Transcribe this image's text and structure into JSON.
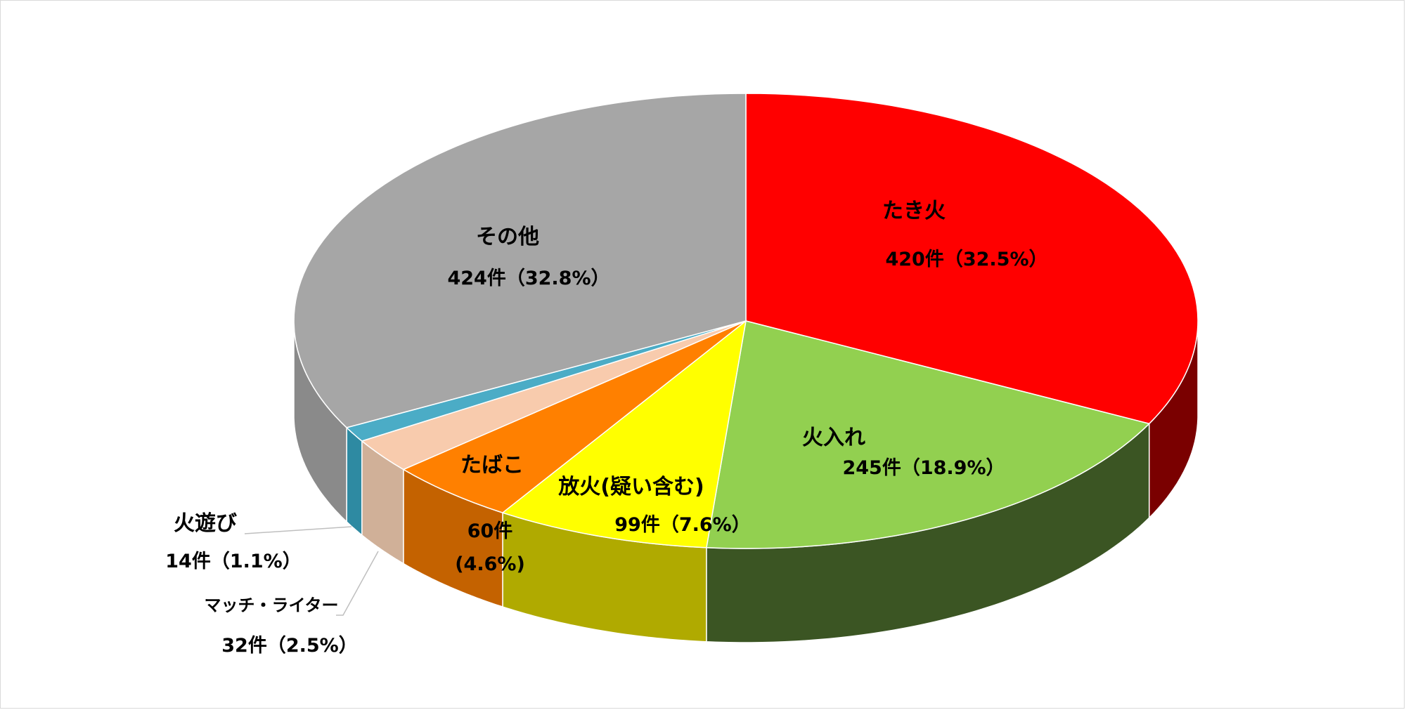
{
  "chart_data": {
    "type": "pie",
    "style": "3d",
    "unit": "件",
    "total": 1294,
    "slices": [
      {
        "name": "たき火",
        "value": 420,
        "percent": 32.5,
        "value_label": "420件（32.5%）",
        "color": "#ff0000",
        "side_color": "#7a0000"
      },
      {
        "name": "火入れ",
        "value": 245,
        "percent": 18.9,
        "value_label": "245件（18.9%）",
        "color": "#92d050",
        "side_color": "#3b5523"
      },
      {
        "name": "放火(疑い含む)",
        "value": 99,
        "percent": 7.6,
        "value_label": "99件（7.6%）",
        "color": "#ffff00",
        "side_color": "#b0aa00"
      },
      {
        "name": "たばこ",
        "value": 60,
        "percent": 4.6,
        "value_label_line1": "60件",
        "value_label_line2": "(4.6%)",
        "color": "#ff8000",
        "side_color": "#c46200"
      },
      {
        "name": "マッチ・ライター",
        "value": 32,
        "percent": 2.5,
        "value_label": "32件（2.5%）",
        "color": "#f8cbad",
        "side_color": "#d0b098"
      },
      {
        "name": "火遊び",
        "value": 14,
        "percent": 1.1,
        "value_label": "14件（1.1%）",
        "color": "#4bacc6",
        "side_color": "#2e8aa2"
      },
      {
        "name": "その他",
        "value": 424,
        "percent": 32.8,
        "value_label": "424件（32.8%）",
        "color": "#a6a6a6",
        "side_color": "#8a8a8a"
      }
    ],
    "legend": "none",
    "title": ""
  }
}
